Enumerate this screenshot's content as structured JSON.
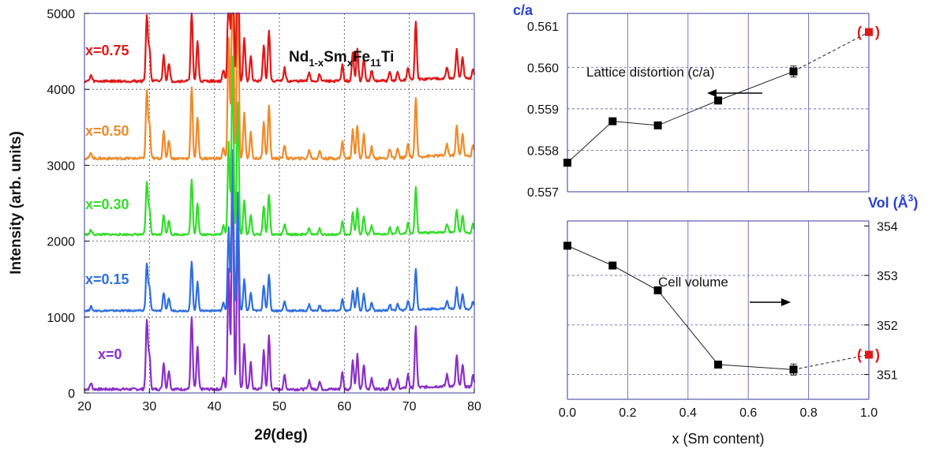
{
  "chart_data": [
    {
      "type": "line",
      "formula": {
        "a": "Nd",
        "b": "1-x",
        "c": "Sm",
        "d": "x",
        "e": "Fe",
        "f": "11",
        "g": "Ti"
      },
      "xlabel": {
        "pre": "2",
        "theta": "θ",
        "post": "(deg)"
      },
      "ylabel": "Intensity (arb. units)",
      "xlim": [
        20,
        80
      ],
      "ylim": [
        0,
        5000
      ],
      "xticks": [
        20,
        30,
        40,
        50,
        60,
        70,
        80
      ],
      "yticks": [
        0,
        1000,
        2000,
        3000,
        4000,
        5000
      ],
      "grid": "dotted vertical at 30,40,50,60,70; dotted horizontal at 1000,2000,3000,4000",
      "peaks": [
        [
          21,
          0.08
        ],
        [
          29.6,
          0.9
        ],
        [
          30.0,
          0.45
        ],
        [
          32.2,
          0.35
        ],
        [
          33.0,
          0.25
        ],
        [
          36.5,
          0.95
        ],
        [
          37.4,
          0.55
        ],
        [
          41.4,
          0.15
        ],
        [
          42.2,
          1.6
        ],
        [
          42.8,
          3.1
        ],
        [
          43.6,
          2.3
        ],
        [
          44.6,
          0.6
        ],
        [
          45.6,
          0.35
        ],
        [
          47.6,
          0.5
        ],
        [
          48.4,
          0.7
        ],
        [
          50.8,
          0.18
        ],
        [
          54.6,
          0.12
        ],
        [
          56.2,
          0.1
        ],
        [
          59.7,
          0.22
        ],
        [
          61.3,
          0.38
        ],
        [
          62.0,
          0.45
        ],
        [
          63.0,
          0.32
        ],
        [
          64.2,
          0.15
        ],
        [
          67.0,
          0.12
        ],
        [
          68.2,
          0.12
        ],
        [
          69.8,
          0.18
        ],
        [
          71.0,
          0.8
        ],
        [
          75.8,
          0.15
        ],
        [
          77.3,
          0.4
        ],
        [
          78.2,
          0.3
        ],
        [
          79.8,
          0.15
        ]
      ],
      "series": [
        {
          "name": "x=0",
          "color": "#8a2fc8",
          "offset": 0,
          "scale": 1000
        },
        {
          "name": "x=0.15",
          "color": "#2f6fe0",
          "offset": 1050,
          "scale": 680
        },
        {
          "name": "x=0.30",
          "color": "#33dd2a",
          "offset": 2050,
          "scale": 760
        },
        {
          "name": "x=0.50",
          "color": "#f08a28",
          "offset": 3040,
          "scale": 990
        },
        {
          "name": "x=0.75",
          "color": "#e01818",
          "offset": 4060,
          "scale": 960
        }
      ]
    },
    {
      "type": "scatter",
      "ylabel": "c/a",
      "xlim": [
        0,
        1
      ],
      "ylim": [
        0.557,
        0.5613
      ],
      "yticks": [
        "0.557",
        "0.558",
        "0.559",
        "0.560",
        "0.561"
      ],
      "annotation": "Lattice distortion (c/a)",
      "arrow": "left",
      "x": [
        0.0,
        0.15,
        0.3,
        0.5,
        0.75,
        1.0
      ],
      "y": [
        0.5577,
        0.5587,
        0.5586,
        0.5592,
        0.5599,
        0.56085
      ],
      "highlight_color": "#e01818",
      "paren": [
        "(",
        ")"
      ]
    },
    {
      "type": "scatter",
      "ylabel": {
        "pre": "Vol (Å",
        "sup": "3",
        "post": ")"
      },
      "xlabel": "x (Sm content)",
      "xlim": [
        0,
        1
      ],
      "ylim": [
        350.5,
        354.1
      ],
      "xticks": [
        "0.0",
        "0.2",
        "0.4",
        "0.6",
        "0.8",
        "1.0"
      ],
      "yticks": [
        "351",
        "352",
        "353",
        "354"
      ],
      "annotation": "Cell volume",
      "arrow": "right",
      "x": [
        0.0,
        0.15,
        0.3,
        0.5,
        0.75,
        1.0
      ],
      "y": [
        353.6,
        353.2,
        352.7,
        351.2,
        351.1,
        351.4
      ],
      "highlight_color": "#e01818",
      "paren": [
        "(",
        ")"
      ]
    }
  ]
}
